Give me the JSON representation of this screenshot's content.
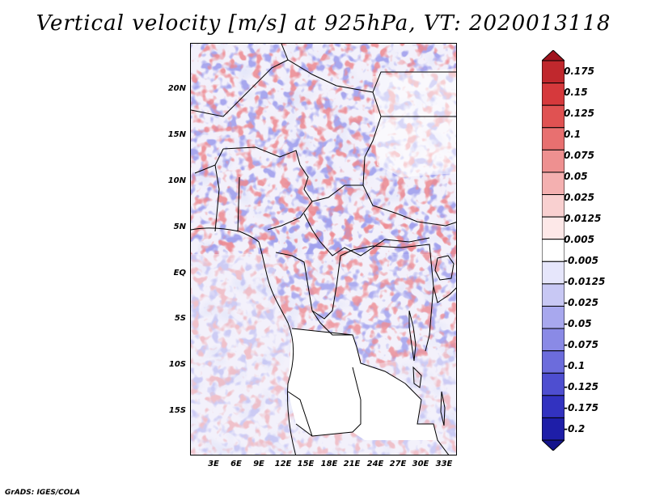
{
  "title": "Vertical velocity [m/s] at 925hPa, VT: 2020013118",
  "credit": "GrADS: IGES/COLA",
  "lat_ticks": [
    "20N",
    "15N",
    "10N",
    "5N",
    "EQ",
    "5S",
    "10S",
    "15S"
  ],
  "lon_ticks": [
    "3E",
    "6E",
    "9E",
    "12E",
    "15E",
    "18E",
    "21E",
    "24E",
    "27E",
    "30E",
    "33E"
  ],
  "colorbar": {
    "labels": [
      "0.175",
      "0.15",
      "0.125",
      "0.1",
      "0.075",
      "0.05",
      "0.025",
      "0.0125",
      "0.005",
      "-0.005",
      "-0.0125",
      "-0.025",
      "-0.05",
      "-0.075",
      "-0.1",
      "-0.125",
      "-0.175",
      "-0.2"
    ],
    "colors": [
      "#a0141e",
      "#c0282d",
      "#d6393c",
      "#e05252",
      "#e87070",
      "#ee9090",
      "#f4b0b0",
      "#f9d0d0",
      "#fde8e8",
      "#ffffff",
      "#e6e6fb",
      "#c8c8f4",
      "#a8a8ee",
      "#8a8ae6",
      "#6c6cdc",
      "#4e4ed0",
      "#3232c0",
      "#1e1ea8",
      "#14148c"
    ],
    "units": "m/s"
  }
}
